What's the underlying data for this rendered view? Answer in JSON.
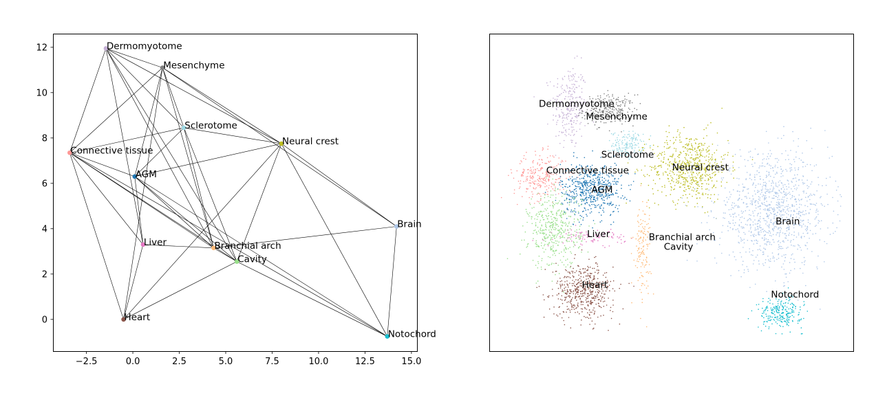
{
  "chart_data": [
    {
      "type": "scatter",
      "title": "",
      "xlabel": "",
      "ylabel": "",
      "xlim": [
        -4.3,
        15.3
      ],
      "ylim": [
        -1.4,
        12.6
      ],
      "xticks": [
        -2.5,
        0.0,
        2.5,
        5.0,
        7.5,
        10.0,
        12.5,
        15.0
      ],
      "xtick_labels": [
        "−2.5",
        "0.0",
        "2.5",
        "5.0",
        "7.5",
        "10.0",
        "12.5",
        "15.0"
      ],
      "yticks": [
        0,
        2,
        4,
        6,
        8,
        10,
        12
      ],
      "ytick_labels": [
        "0",
        "2",
        "4",
        "6",
        "8",
        "10",
        "12"
      ],
      "grid": false,
      "nodes": [
        {
          "name": "Dermomyotome",
          "x": -1.45,
          "y": 11.95,
          "color": "#c5b0d5"
        },
        {
          "name": "Mesenchyme",
          "x": 1.6,
          "y": 11.1,
          "color": "#7f7f7f"
        },
        {
          "name": "Sclerotome",
          "x": 2.75,
          "y": 8.45,
          "color": "#9edae5"
        },
        {
          "name": "Neural crest",
          "x": 8.0,
          "y": 7.75,
          "color": "#bcbd22"
        },
        {
          "name": "Connective tissue",
          "x": -3.4,
          "y": 7.35,
          "color": "#ff9896"
        },
        {
          "name": "AGM",
          "x": 0.1,
          "y": 6.3,
          "color": "#1f77b4"
        },
        {
          "name": "Brain",
          "x": 14.2,
          "y": 4.1,
          "color": "#aec7e8"
        },
        {
          "name": "Liver",
          "x": 0.55,
          "y": 3.3,
          "color": "#e377c2"
        },
        {
          "name": "Branchial arch",
          "x": 4.35,
          "y": 3.15,
          "color": "#ffbb78"
        },
        {
          "name": "Cavity",
          "x": 5.6,
          "y": 2.55,
          "color": "#98df8a"
        },
        {
          "name": "Heart",
          "x": -0.5,
          "y": 0.0,
          "color": "#8c564b"
        },
        {
          "name": "Notochord",
          "x": 13.7,
          "y": -0.75,
          "color": "#17becf"
        }
      ],
      "edges": [
        [
          "Dermomyotome",
          "Mesenchyme"
        ],
        [
          "Dermomyotome",
          "Connective tissue"
        ],
        [
          "Dermomyotome",
          "Neural crest"
        ],
        [
          "Dermomyotome",
          "Sclerotome"
        ],
        [
          "Dermomyotome",
          "Branchial arch"
        ],
        [
          "Dermomyotome",
          "Cavity"
        ],
        [
          "Dermomyotome",
          "Liver"
        ],
        [
          "Mesenchyme",
          "Connective tissue"
        ],
        [
          "Mesenchyme",
          "Sclerotome"
        ],
        [
          "Mesenchyme",
          "Neural crest"
        ],
        [
          "Mesenchyme",
          "Brain"
        ],
        [
          "Mesenchyme",
          "AGM"
        ],
        [
          "Mesenchyme",
          "Heart"
        ],
        [
          "Mesenchyme",
          "Branchial arch"
        ],
        [
          "Sclerotome",
          "Connective tissue"
        ],
        [
          "Sclerotome",
          "Neural crest"
        ],
        [
          "Sclerotome",
          "Branchial arch"
        ],
        [
          "Sclerotome",
          "Cavity"
        ],
        [
          "Sclerotome",
          "AGM"
        ],
        [
          "Neural crest",
          "AGM"
        ],
        [
          "Neural crest",
          "Brain"
        ],
        [
          "Neural crest",
          "Notochord"
        ],
        [
          "Neural crest",
          "Cavity"
        ],
        [
          "Neural crest",
          "Heart"
        ],
        [
          "Connective tissue",
          "AGM"
        ],
        [
          "Connective tissue",
          "Heart"
        ],
        [
          "Connective tissue",
          "Liver"
        ],
        [
          "Connective tissue",
          "Branchial arch"
        ],
        [
          "Connective tissue",
          "Cavity"
        ],
        [
          "Connective tissue",
          "Notochord"
        ],
        [
          "AGM",
          "Branchial arch"
        ],
        [
          "AGM",
          "Cavity"
        ],
        [
          "AGM",
          "Liver"
        ],
        [
          "AGM",
          "Notochord"
        ],
        [
          "Brain",
          "Branchial arch"
        ],
        [
          "Brain",
          "Notochord"
        ],
        [
          "Liver",
          "Branchial arch"
        ],
        [
          "Liver",
          "Heart"
        ],
        [
          "Branchial arch",
          "Cavity"
        ],
        [
          "Cavity",
          "Heart"
        ],
        [
          "Cavity",
          "Notochord"
        ]
      ]
    },
    {
      "type": "scatter",
      "title": "",
      "xlabel": "",
      "ylabel": "",
      "axes_ticks": false,
      "grid": false,
      "xlim": [
        0,
        1
      ],
      "ylim": [
        0,
        1
      ],
      "clusters": [
        {
          "name": "Dermomyotome",
          "color": "#c5b0d5",
          "label_pos": [
            0.24,
            0.78
          ],
          "center": [
            0.22,
            0.77
          ],
          "spread": [
            0.04,
            0.11
          ],
          "count": 260
        },
        {
          "name": "Mesenchyme",
          "color": "#7f7f7f",
          "label_pos": [
            0.35,
            0.74
          ],
          "center": [
            0.33,
            0.76
          ],
          "spread": [
            0.06,
            0.04
          ],
          "count": 260
        },
        {
          "name": "Sclerotome",
          "color": "#9edae5",
          "label_pos": [
            0.38,
            0.62
          ],
          "center": [
            0.38,
            0.65
          ],
          "spread": [
            0.035,
            0.035
          ],
          "count": 160
        },
        {
          "name": "Neural crest",
          "color": "#bcbd22",
          "label_pos": [
            0.58,
            0.58
          ],
          "center": [
            0.55,
            0.58
          ],
          "spread": [
            0.09,
            0.09
          ],
          "count": 620
        },
        {
          "name": "Connective tissue",
          "color": "#ff9896",
          "label_pos": [
            0.27,
            0.57
          ],
          "center": [
            0.14,
            0.55
          ],
          "spread": [
            0.06,
            0.06
          ],
          "count": 260
        },
        {
          "name": "AGM",
          "color": "#1f77b4",
          "label_pos": [
            0.31,
            0.51
          ],
          "center": [
            0.28,
            0.51
          ],
          "spread": [
            0.07,
            0.07
          ],
          "count": 560
        },
        {
          "name": "Brain",
          "color": "#aec7e8",
          "label_pos": [
            0.82,
            0.41
          ],
          "center": [
            0.78,
            0.44
          ],
          "spread": [
            0.13,
            0.15
          ],
          "count": 1100
        },
        {
          "name": "Liver",
          "color": "#e377c2",
          "label_pos": [
            0.3,
            0.37
          ],
          "center": [
            0.28,
            0.36
          ],
          "spread": [
            0.08,
            0.02
          ],
          "count": 90
        },
        {
          "name": "Branchial arch",
          "color": "#ffbb78",
          "label_pos": [
            0.53,
            0.36
          ],
          "center": [
            0.42,
            0.33
          ],
          "spread": [
            0.02,
            0.12
          ],
          "count": 140
        },
        {
          "name": "Cavity",
          "color": "#98df8a",
          "label_pos": [
            0.52,
            0.33
          ],
          "center": [
            0.18,
            0.38
          ],
          "spread": [
            0.06,
            0.1
          ],
          "count": 440
        },
        {
          "name": "Heart",
          "color": "#8c564b",
          "label_pos": [
            0.29,
            0.21
          ],
          "center": [
            0.26,
            0.19
          ],
          "spread": [
            0.07,
            0.07
          ],
          "count": 520
        },
        {
          "name": "Notochord",
          "color": "#17becf",
          "label_pos": [
            0.84,
            0.18
          ],
          "center": [
            0.8,
            0.12
          ],
          "spread": [
            0.05,
            0.04
          ],
          "count": 240
        }
      ]
    }
  ]
}
